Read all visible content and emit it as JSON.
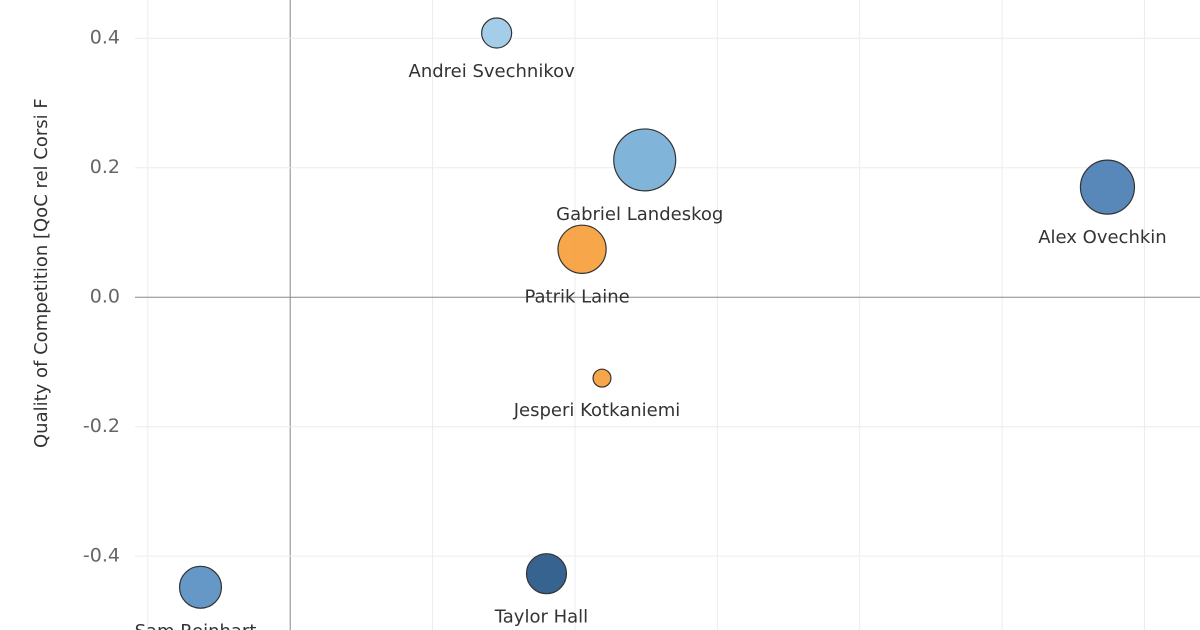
{
  "chart_data": {
    "type": "scatter",
    "y_label": "Quality of Competition [QoC rel Corsi F",
    "labels": [
      "Andrei Svechnikov",
      "Gabriel Landeskog",
      "Alex Ovechkin",
      "Patrik Laine",
      "Jesperi Kotkaniemi",
      "Taylor Hall",
      "Sam Reinhart"
    ],
    "x": [
      1.45,
      2.49,
      5.74,
      2.05,
      2.19,
      1.8,
      -0.63
    ],
    "y": [
      0.408,
      0.212,
      0.17,
      0.074,
      -0.125,
      -0.427,
      -0.448
    ],
    "sizes": [
      2.25,
      9.6,
      7.3,
      5.8,
      0.8,
      4.0,
      4.4
    ],
    "colors": [
      "#9fcae8",
      "#79b0d6",
      "#4f81b5",
      "#f7a240",
      "#f7a240",
      "#2c5b8a",
      "#5d91c4"
    ],
    "xlim": [
      -1.09,
      6.39
    ],
    "ylim": [
      -0.514,
      0.459
    ],
    "xticks": [
      -1,
      0,
      1,
      2,
      3,
      4,
      5,
      6
    ],
    "yticks": [
      {
        "value": 0.4,
        "label": "0.4"
      },
      {
        "value": 0.2,
        "label": "0.2"
      },
      {
        "value": 0,
        "label": "0.0"
      },
      {
        "value": -0.2,
        "label": "-0.2"
      },
      {
        "value": -0.4,
        "label": "-0.4"
      }
    ],
    "grid": true
  }
}
